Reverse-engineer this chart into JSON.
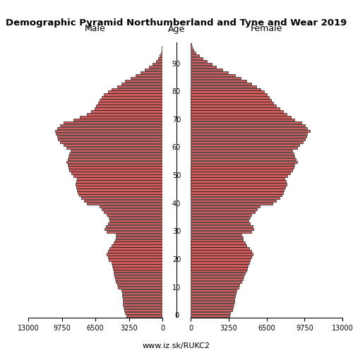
{
  "title": "Demographic Pyramid Northumberland and Tyne and Wear 2019",
  "label_male": "Male",
  "label_female": "Female",
  "label_age": "Age",
  "watermark": "www.iz.sk/RUKC2",
  "xlim": 13000,
  "bar_color": "#cd5c5c",
  "bar_edge_color": "#000000",
  "bar_linewidth": 0.4,
  "age_tick_interval": 10,
  "male": [
    3500,
    3600,
    3700,
    3750,
    3800,
    3820,
    3850,
    3870,
    3900,
    3950,
    4300,
    4400,
    4500,
    4600,
    4650,
    4700,
    4750,
    4800,
    4850,
    4900,
    5200,
    5300,
    5400,
    5300,
    5100,
    4900,
    4750,
    4600,
    4550,
    4500,
    5400,
    5600,
    5500,
    5300,
    5100,
    5200,
    5400,
    5700,
    5900,
    6100,
    7300,
    7600,
    7900,
    8100,
    8200,
    8300,
    8350,
    8400,
    8350,
    8300,
    8600,
    8800,
    9000,
    9100,
    9200,
    9300,
    9200,
    9100,
    9000,
    8900,
    9300,
    9600,
    9900,
    10100,
    10200,
    10300,
    10400,
    10200,
    9900,
    9600,
    8600,
    8000,
    7300,
    6900,
    6600,
    6400,
    6200,
    6100,
    5900,
    5700,
    5300,
    4900,
    4400,
    4000,
    3600,
    3100,
    2600,
    2100,
    1700,
    1300,
    950,
    650,
    420,
    260,
    150,
    80,
    40,
    15
  ],
  "female": [
    3300,
    3400,
    3550,
    3650,
    3700,
    3720,
    3750,
    3800,
    3850,
    3900,
    4100,
    4200,
    4350,
    4450,
    4550,
    4650,
    4750,
    4850,
    4900,
    5000,
    5100,
    5200,
    5300,
    5200,
    5000,
    4800,
    4650,
    4500,
    4450,
    4350,
    5200,
    5400,
    5300,
    5100,
    4950,
    5050,
    5200,
    5500,
    5700,
    5900,
    7000,
    7300,
    7600,
    7800,
    7900,
    8000,
    8100,
    8200,
    8150,
    8050,
    8300,
    8500,
    8700,
    8800,
    8900,
    9100,
    9000,
    8900,
    8800,
    8700,
    9100,
    9300,
    9600,
    9800,
    9900,
    10000,
    10200,
    10000,
    9800,
    9500,
    8900,
    8600,
    8200,
    7900,
    7600,
    7300,
    7100,
    6900,
    6700,
    6500,
    6300,
    6000,
    5600,
    5200,
    4800,
    4300,
    3800,
    3200,
    2700,
    2200,
    1800,
    1400,
    1000,
    700,
    450,
    250,
    120,
    50
  ]
}
